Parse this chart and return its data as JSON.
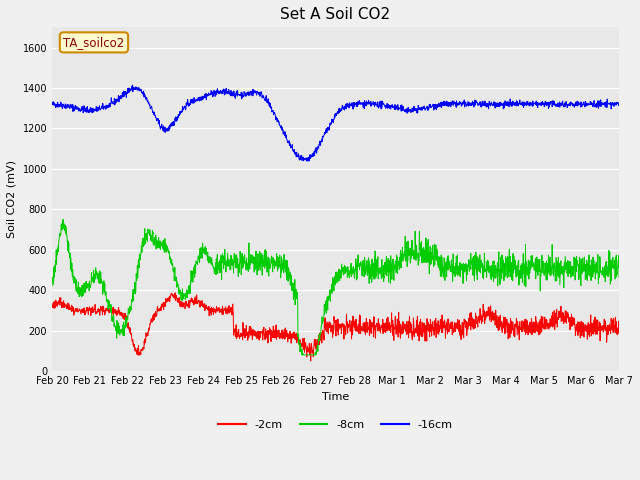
{
  "title": "Set A Soil CO2",
  "ylabel": "Soil CO2 (mV)",
  "xlabel": "Time",
  "legend_label": "TA_soilco2",
  "series_labels": [
    "-2cm",
    "-8cm",
    "-16cm"
  ],
  "series_colors": [
    "#ff0000",
    "#00cc00",
    "#0000ff"
  ],
  "plot_bg_color": "#e8e8e8",
  "fig_bg_color": "#f0f0f0",
  "ylim": [
    0,
    1700
  ],
  "yticks": [
    0,
    200,
    400,
    600,
    800,
    1000,
    1200,
    1400,
    1600
  ],
  "n_points": 2000,
  "xtick_labels": [
    "Feb 20",
    "Feb 21",
    "Feb 22",
    "Feb 23",
    "Feb 24",
    "Feb 25",
    "Feb 26",
    "Feb 27",
    "Feb 28",
    "Mar 1",
    "Mar 2",
    "Mar 3",
    "Mar 4",
    "Mar 5",
    "Mar 6",
    "Mar 7"
  ],
  "title_fontsize": 11,
  "axis_fontsize": 8,
  "tick_fontsize": 7,
  "legend_fontsize": 8
}
